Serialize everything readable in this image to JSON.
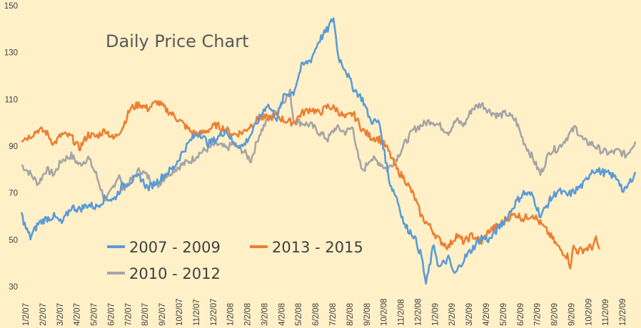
{
  "chart_data": {
    "type": "line",
    "title": "Daily Price Chart",
    "xlabel": "",
    "ylabel": "",
    "ylim": [
      30,
      150
    ],
    "y_ticks": [
      30,
      50,
      70,
      90,
      110,
      130,
      150
    ],
    "x_range": [
      "2007-01-02",
      "2009-12-31"
    ],
    "x_tick_labels": [
      "1/2/07",
      "2/2/07",
      "3/2/07",
      "4/2/07",
      "5/2/07",
      "6/2/07",
      "7/2/07",
      "8/2/07",
      "9/2/07",
      "10/2/07",
      "11/2/07",
      "12/2/07",
      "1/2/08",
      "2/2/08",
      "3/2/08",
      "4/2/08",
      "5/2/08",
      "6/2/08",
      "7/2/08",
      "8/2/08",
      "9/2/08",
      "10/2/08",
      "11/2/08",
      "12/2/08",
      "1/2/09",
      "2/2/09",
      "3/2/09",
      "4/2/09",
      "5/2/09",
      "6/2/09",
      "7/2/09",
      "8/2/09",
      "9/2/09",
      "10/2/09",
      "11/2/09",
      "12/2/09"
    ],
    "grid": false,
    "background": "#FFF0C8",
    "series": [
      {
        "name": "2007 - 2009",
        "color": "#5B9BD5",
        "points": [
          [
            "2007-01-02",
            61
          ],
          [
            "2007-01-10",
            55
          ],
          [
            "2007-01-18",
            51
          ],
          [
            "2007-02-01",
            57
          ],
          [
            "2007-02-15",
            59
          ],
          [
            "2007-03-01",
            60
          ],
          [
            "2007-03-15",
            57
          ],
          [
            "2007-04-01",
            64
          ],
          [
            "2007-04-15",
            63
          ],
          [
            "2007-05-01",
            65
          ],
          [
            "2007-05-15",
            64
          ],
          [
            "2007-06-01",
            68
          ],
          [
            "2007-06-15",
            67
          ],
          [
            "2007-07-01",
            73
          ],
          [
            "2007-07-15",
            75
          ],
          [
            "2007-08-01",
            77
          ],
          [
            "2007-08-15",
            72
          ],
          [
            "2007-09-01",
            75
          ],
          [
            "2007-09-15",
            78
          ],
          [
            "2007-10-01",
            81
          ],
          [
            "2007-10-15",
            87
          ],
          [
            "2007-11-01",
            93
          ],
          [
            "2007-11-15",
            96
          ],
          [
            "2007-12-01",
            91
          ],
          [
            "2007-12-15",
            93
          ],
          [
            "2008-01-02",
            97
          ],
          [
            "2008-01-15",
            91
          ],
          [
            "2008-02-01",
            90
          ],
          [
            "2008-02-15",
            95
          ],
          [
            "2008-03-01",
            102
          ],
          [
            "2008-03-15",
            108
          ],
          [
            "2008-04-01",
            102
          ],
          [
            "2008-04-15",
            112
          ],
          [
            "2008-05-01",
            113
          ],
          [
            "2008-05-15",
            124
          ],
          [
            "2008-06-01",
            127
          ],
          [
            "2008-06-15",
            135
          ],
          [
            "2008-07-01",
            140
          ],
          [
            "2008-07-11",
            145
          ],
          [
            "2008-07-20",
            128
          ],
          [
            "2008-08-01",
            123
          ],
          [
            "2008-08-15",
            115
          ],
          [
            "2008-09-01",
            110
          ],
          [
            "2008-09-15",
            101
          ],
          [
            "2008-10-01",
            100
          ],
          [
            "2008-10-10",
            87
          ],
          [
            "2008-10-20",
            74
          ],
          [
            "2008-11-01",
            68
          ],
          [
            "2008-11-15",
            56
          ],
          [
            "2008-12-01",
            52
          ],
          [
            "2008-12-15",
            43
          ],
          [
            "2008-12-23",
            31
          ],
          [
            "2009-01-06",
            48
          ],
          [
            "2009-01-15",
            38
          ],
          [
            "2009-02-01",
            42
          ],
          [
            "2009-02-12",
            35
          ],
          [
            "2009-03-01",
            42
          ],
          [
            "2009-03-15",
            46
          ],
          [
            "2009-04-01",
            51
          ],
          [
            "2009-04-15",
            50
          ],
          [
            "2009-05-01",
            55
          ],
          [
            "2009-05-15",
            59
          ],
          [
            "2009-06-01",
            66
          ],
          [
            "2009-06-15",
            70
          ],
          [
            "2009-07-01",
            69
          ],
          [
            "2009-07-15",
            60
          ],
          [
            "2009-08-01",
            67
          ],
          [
            "2009-08-15",
            71
          ],
          [
            "2009-09-01",
            69
          ],
          [
            "2009-09-15",
            71
          ],
          [
            "2009-10-01",
            74
          ],
          [
            "2009-10-15",
            80
          ],
          [
            "2009-11-01",
            79
          ],
          [
            "2009-11-15",
            78
          ],
          [
            "2009-12-01",
            76
          ],
          [
            "2009-12-10",
            70
          ],
          [
            "2009-12-20",
            74
          ],
          [
            "2009-12-31",
            79
          ]
        ]
      },
      {
        "name": "2013 - 2015",
        "color": "#ED7D31",
        "points": [
          [
            "2007-01-02",
            93
          ],
          [
            "2007-01-15",
            94
          ],
          [
            "2007-02-01",
            97
          ],
          [
            "2007-02-15",
            96
          ],
          [
            "2007-03-01",
            91
          ],
          [
            "2007-03-15",
            95
          ],
          [
            "2007-04-01",
            94
          ],
          [
            "2007-04-15",
            89
          ],
          [
            "2007-05-01",
            95
          ],
          [
            "2007-05-15",
            94
          ],
          [
            "2007-06-01",
            97
          ],
          [
            "2007-06-15",
            93
          ],
          [
            "2007-07-01",
            98
          ],
          [
            "2007-07-15",
            106
          ],
          [
            "2007-08-01",
            108
          ],
          [
            "2007-08-15",
            106
          ],
          [
            "2007-09-01",
            109
          ],
          [
            "2007-09-15",
            106
          ],
          [
            "2007-10-01",
            103
          ],
          [
            "2007-10-15",
            100
          ],
          [
            "2007-11-01",
            96
          ],
          [
            "2007-11-15",
            95
          ],
          [
            "2007-12-01",
            97
          ],
          [
            "2007-12-15",
            99
          ],
          [
            "2008-01-02",
            97
          ],
          [
            "2008-01-15",
            95
          ],
          [
            "2008-02-01",
            96
          ],
          [
            "2008-02-15",
            99
          ],
          [
            "2008-03-01",
            102
          ],
          [
            "2008-03-15",
            102
          ],
          [
            "2008-04-01",
            103
          ],
          [
            "2008-04-15",
            101
          ],
          [
            "2008-05-01",
            100
          ],
          [
            "2008-05-15",
            104
          ],
          [
            "2008-06-01",
            106
          ],
          [
            "2008-06-15",
            104
          ],
          [
            "2008-07-01",
            107
          ],
          [
            "2008-07-15",
            106
          ],
          [
            "2008-08-01",
            102
          ],
          [
            "2008-08-15",
            104
          ],
          [
            "2008-09-01",
            97
          ],
          [
            "2008-09-15",
            94
          ],
          [
            "2008-10-01",
            93
          ],
          [
            "2008-10-15",
            89
          ],
          [
            "2008-11-01",
            80
          ],
          [
            "2008-11-15",
            76
          ],
          [
            "2008-12-01",
            69
          ],
          [
            "2008-12-15",
            60
          ],
          [
            "2009-01-01",
            55
          ],
          [
            "2009-01-15",
            50
          ],
          [
            "2009-02-01",
            47
          ],
          [
            "2009-02-15",
            52
          ],
          [
            "2009-03-01",
            49
          ],
          [
            "2009-03-15",
            52
          ],
          [
            "2009-04-01",
            49
          ],
          [
            "2009-04-15",
            54
          ],
          [
            "2009-05-01",
            56
          ],
          [
            "2009-05-15",
            59
          ],
          [
            "2009-06-01",
            61
          ],
          [
            "2009-06-15",
            59
          ],
          [
            "2009-07-01",
            61
          ],
          [
            "2009-07-15",
            57
          ],
          [
            "2009-08-01",
            52
          ],
          [
            "2009-08-15",
            47
          ],
          [
            "2009-09-01",
            43
          ],
          [
            "2009-09-06",
            39
          ],
          [
            "2009-09-12",
            47
          ],
          [
            "2009-09-20",
            45
          ],
          [
            "2009-10-01",
            46
          ],
          [
            "2009-10-15",
            47
          ],
          [
            "2009-10-22",
            50
          ],
          [
            "2009-10-28",
            46
          ]
        ]
      },
      {
        "name": "2010 - 2012",
        "color": "#A5A5A5",
        "points": [
          [
            "2007-01-02",
            82
          ],
          [
            "2007-01-15",
            79
          ],
          [
            "2007-02-01",
            74
          ],
          [
            "2007-02-15",
            80
          ],
          [
            "2007-03-01",
            78
          ],
          [
            "2007-03-15",
            84
          ],
          [
            "2007-04-01",
            86
          ],
          [
            "2007-04-15",
            82
          ],
          [
            "2007-05-01",
            85
          ],
          [
            "2007-05-15",
            78
          ],
          [
            "2007-06-01",
            66
          ],
          [
            "2007-06-15",
            73
          ],
          [
            "2007-06-25",
            78
          ],
          [
            "2007-07-01",
            72
          ],
          [
            "2007-07-15",
            75
          ],
          [
            "2007-08-01",
            80
          ],
          [
            "2007-08-15",
            77
          ],
          [
            "2007-09-01",
            73
          ],
          [
            "2007-09-15",
            77
          ],
          [
            "2007-10-01",
            80
          ],
          [
            "2007-10-15",
            82
          ],
          [
            "2007-11-01",
            84
          ],
          [
            "2007-11-15",
            87
          ],
          [
            "2007-12-01",
            89
          ],
          [
            "2007-12-15",
            91
          ],
          [
            "2008-01-02",
            89
          ],
          [
            "2008-01-15",
            91
          ],
          [
            "2008-02-01",
            88
          ],
          [
            "2008-02-15",
            84
          ],
          [
            "2008-03-01",
            95
          ],
          [
            "2008-03-15",
            101
          ],
          [
            "2008-04-01",
            105
          ],
          [
            "2008-04-15",
            110
          ],
          [
            "2008-04-25",
            113
          ],
          [
            "2008-05-01",
            101
          ],
          [
            "2008-05-15",
            100
          ],
          [
            "2008-06-01",
            99
          ],
          [
            "2008-06-15",
            96
          ],
          [
            "2008-07-01",
            93
          ],
          [
            "2008-07-15",
            98
          ],
          [
            "2008-08-01",
            96
          ],
          [
            "2008-08-15",
            98
          ],
          [
            "2008-08-25",
            84
          ],
          [
            "2008-09-01",
            79
          ],
          [
            "2008-09-15",
            85
          ],
          [
            "2008-10-01",
            83
          ],
          [
            "2008-10-15",
            80
          ],
          [
            "2008-11-01",
            85
          ],
          [
            "2008-11-15",
            91
          ],
          [
            "2008-12-01",
            97
          ],
          [
            "2008-12-15",
            99
          ],
          [
            "2009-01-01",
            101
          ],
          [
            "2009-01-15",
            99
          ],
          [
            "2009-02-01",
            96
          ],
          [
            "2009-02-15",
            101
          ],
          [
            "2009-03-01",
            99
          ],
          [
            "2009-03-15",
            106
          ],
          [
            "2009-04-01",
            108
          ],
          [
            "2009-04-15",
            105
          ],
          [
            "2009-05-01",
            103
          ],
          [
            "2009-05-15",
            104
          ],
          [
            "2009-06-01",
            101
          ],
          [
            "2009-06-15",
            92
          ],
          [
            "2009-07-01",
            85
          ],
          [
            "2009-07-15",
            78
          ],
          [
            "2009-08-01",
            88
          ],
          [
            "2009-08-15",
            89
          ],
          [
            "2009-09-01",
            94
          ],
          [
            "2009-09-15",
            98
          ],
          [
            "2009-10-01",
            92
          ],
          [
            "2009-10-15",
            91
          ],
          [
            "2009-11-01",
            88
          ],
          [
            "2009-11-15",
            87
          ],
          [
            "2009-12-01",
            88
          ],
          [
            "2009-12-15",
            86
          ],
          [
            "2009-12-31",
            92
          ]
        ]
      }
    ]
  }
}
